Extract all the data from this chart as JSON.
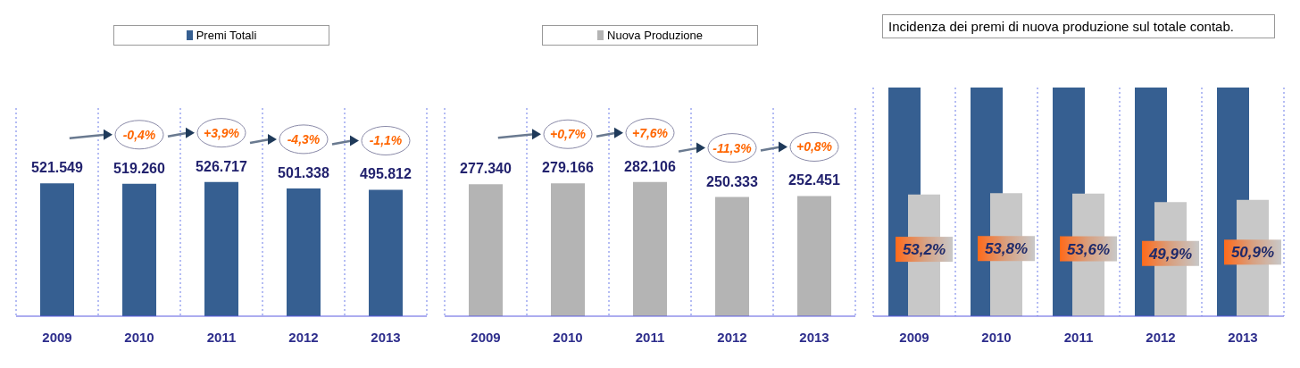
{
  "chart_data": [
    {
      "type": "bar",
      "categories": [
        "2009",
        "2010",
        "2011",
        "2012",
        "2013"
      ],
      "legend": "top",
      "grid": "x",
      "series": [
        {
          "name": "Premi Totali",
          "color": "#365f91",
          "values": [
            521549,
            519260,
            526717,
            501338,
            495812
          ],
          "value_labels": [
            "521.549",
            "519.260",
            "526.717",
            "501.338",
            "495.812"
          ]
        }
      ],
      "annotations": [
        "-0,4%",
        "+3,9%",
        "-4,3%",
        "-1,1%"
      ]
    },
    {
      "type": "bar",
      "categories": [
        "2009",
        "2010",
        "2011",
        "2012",
        "2013"
      ],
      "legend": "top",
      "grid": "x",
      "series": [
        {
          "name": "Nuova Produzione",
          "color": "#b4b4b4",
          "values": [
            277340,
            279166,
            282106,
            250333,
            252451
          ],
          "value_labels": [
            "277.340",
            "279.166",
            "282.106",
            "250.333",
            "252.451"
          ]
        }
      ],
      "annotations": [
        "+0,7%",
        "+7,6%",
        "-11,3%",
        "+0,8%"
      ]
    },
    {
      "type": "bar",
      "title": "Incidenza dei premi di nuova produzione sul totale contab.",
      "categories": [
        "2009",
        "2010",
        "2011",
        "2012",
        "2013"
      ],
      "grid": "x",
      "series": [
        {
          "color": "#365f91",
          "values": [
            100,
            100,
            100,
            100,
            100
          ]
        },
        {
          "color": "#c8c8c8",
          "values": [
            53.2,
            53.8,
            53.6,
            49.9,
            50.9
          ],
          "value_labels": [
            "53,2%",
            "53,8%",
            "53,6%",
            "49,9%",
            "50,9%"
          ]
        }
      ]
    }
  ]
}
